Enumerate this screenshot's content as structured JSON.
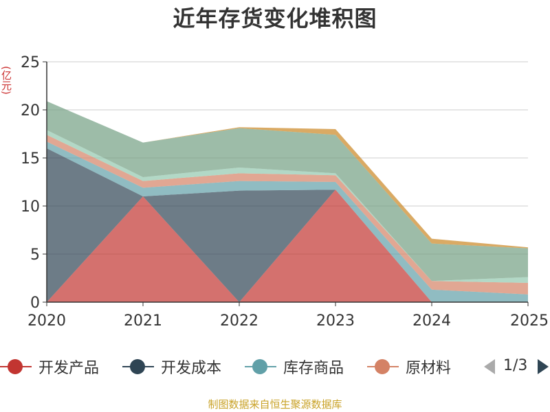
{
  "chart_data": {
    "type": "area",
    "title": "近年存货变化堆积图",
    "y_unit": "(亿元)",
    "x": [
      "2020",
      "2021",
      "2022",
      "2023",
      "2024",
      "2025"
    ],
    "ylim": [
      0,
      25
    ],
    "yticks": [
      0,
      5,
      10,
      15,
      20,
      25
    ],
    "grid": true,
    "stacked": true,
    "series": [
      {
        "name": "开发产品",
        "color": "#c23531",
        "values": [
          0.0,
          11.0,
          0.0,
          11.7,
          0.0,
          0.0
        ]
      },
      {
        "name": "开发成本",
        "color": "#2f4554",
        "values": [
          16.0,
          0.0,
          11.6,
          0.0,
          0.0,
          0.0
        ]
      },
      {
        "name": "库存商品",
        "color": "#61a0a8",
        "values": [
          0.7,
          0.9,
          1.0,
          0.8,
          1.3,
          0.8
        ]
      },
      {
        "name": "原材料",
        "color": "#d48265",
        "values": [
          0.7,
          0.7,
          0.8,
          0.7,
          0.9,
          1.2
        ]
      },
      {
        "color": "#91c7ae",
        "values": [
          0.5,
          0.4,
          0.6,
          0.2,
          0.0,
          0.6
        ]
      },
      {
        "color": "#749f83",
        "values": [
          3.0,
          3.6,
          4.1,
          4.0,
          3.9,
          3.0
        ]
      },
      {
        "color": "#ca8622",
        "values": [
          0.0,
          0.0,
          0.1,
          0.6,
          0.5,
          0.1
        ]
      }
    ],
    "legend_position": "bottom"
  },
  "legend": {
    "items": [
      {
        "label": "开发产品",
        "color": "#c23531"
      },
      {
        "label": "开发成本",
        "color": "#2f4554"
      },
      {
        "label": "库存商品",
        "color": "#61a0a8"
      },
      {
        "label": "原材料",
        "color": "#d48265"
      }
    ],
    "pager_text": "1/3",
    "prev_icon": "triangle-left-icon",
    "next_icon": "triangle-right-icon"
  },
  "source_note": "制图数据来自恒生聚源数据库",
  "colors": {
    "title": "#333333",
    "unit": "#cc3333",
    "source": "#c9a227",
    "grid": "#cccccc",
    "axis": "#333333"
  }
}
